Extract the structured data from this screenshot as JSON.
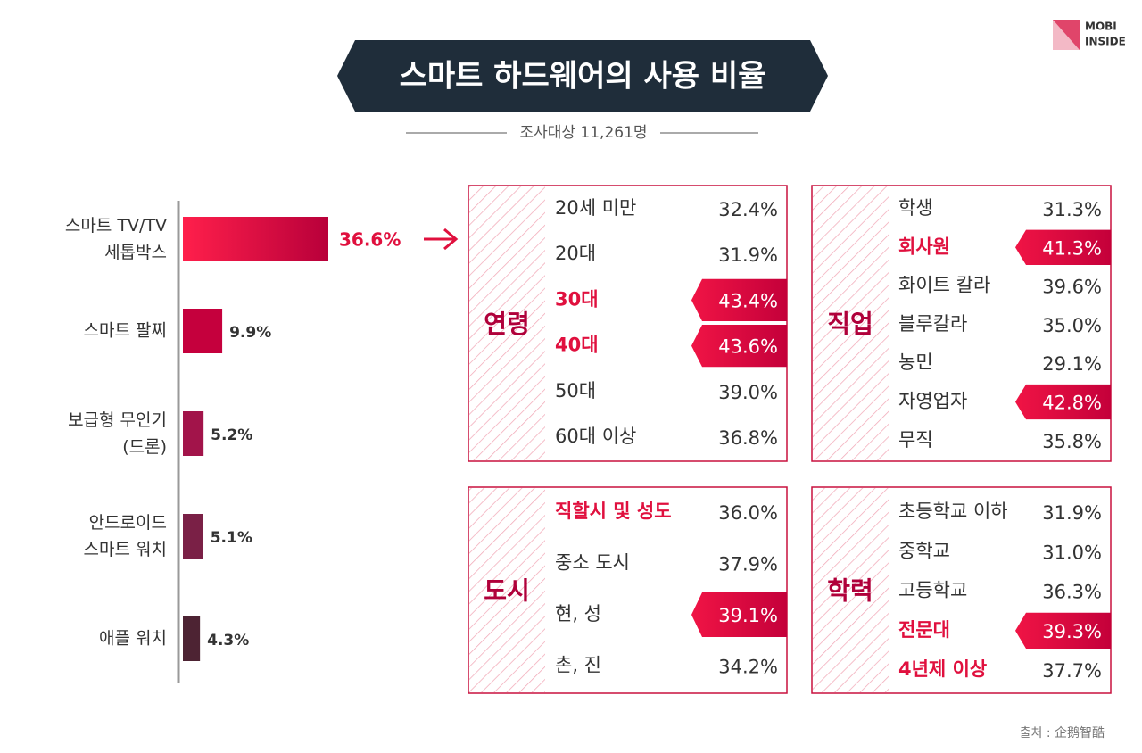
{
  "logo": {
    "line1": "MOBI",
    "line2": "INSIDE"
  },
  "title": "스마트 하드웨어의 사용 비율",
  "subtitle": "조사대상 11,261명",
  "chart_data": {
    "type": "bar",
    "orientation": "horizontal",
    "categories": [
      "스마트 TV/TV\n세톱박스",
      "스마트 팔찌",
      "보급형 무인기\n(드론)",
      "안드로이드\n스마트 워치",
      "애플 워치"
    ],
    "values": [
      36.6,
      9.9,
      5.2,
      5.1,
      4.3
    ],
    "value_labels": [
      "36.6%",
      "9.9%",
      "5.2%",
      "5.1%",
      "4.3%"
    ],
    "colors": [
      "#e8103f",
      "#c5003d",
      "#a2144a",
      "#7a2046",
      "#4d2333"
    ]
  },
  "panels": [
    {
      "title": "연령",
      "rows": [
        {
          "label": "20세 미만",
          "value": "32.4%",
          "label_emphasis": false,
          "value_emphasis": false
        },
        {
          "label": "20대",
          "value": "31.9%",
          "label_emphasis": false,
          "value_emphasis": false
        },
        {
          "label": "30대",
          "value": "43.4%",
          "label_emphasis": true,
          "value_emphasis": true
        },
        {
          "label": "40대",
          "value": "43.6%",
          "label_emphasis": true,
          "value_emphasis": true
        },
        {
          "label": "50대",
          "value": "39.0%",
          "label_emphasis": false,
          "value_emphasis": false
        },
        {
          "label": "60대 이상",
          "value": "36.8%",
          "label_emphasis": false,
          "value_emphasis": false
        }
      ]
    },
    {
      "title": "직업",
      "rows": [
        {
          "label": "학생",
          "value": "31.3%",
          "label_emphasis": false,
          "value_emphasis": false
        },
        {
          "label": "회사원",
          "value": "41.3%",
          "label_emphasis": true,
          "value_emphasis": true
        },
        {
          "label": "화이트 칼라",
          "value": "39.6%",
          "label_emphasis": false,
          "value_emphasis": false
        },
        {
          "label": "블루칼라",
          "value": "35.0%",
          "label_emphasis": false,
          "value_emphasis": false
        },
        {
          "label": "농민",
          "value": "29.1%",
          "label_emphasis": false,
          "value_emphasis": false
        },
        {
          "label": "자영업자",
          "value": "42.8%",
          "label_emphasis": false,
          "value_emphasis": true
        },
        {
          "label": "무직",
          "value": "35.8%",
          "label_emphasis": false,
          "value_emphasis": false
        }
      ]
    },
    {
      "title": "도시",
      "rows": [
        {
          "label": "직할시 및 성도",
          "value": "36.0%",
          "label_emphasis": true,
          "value_emphasis": false
        },
        {
          "label": "중소 도시",
          "value": "37.9%",
          "label_emphasis": false,
          "value_emphasis": false
        },
        {
          "label": "현, 성",
          "value": "39.1%",
          "label_emphasis": false,
          "value_emphasis": true
        },
        {
          "label": "촌, 진",
          "value": "34.2%",
          "label_emphasis": false,
          "value_emphasis": false
        }
      ]
    },
    {
      "title": "학력",
      "rows": [
        {
          "label": "초등학교 이하",
          "value": "31.9%",
          "label_emphasis": false,
          "value_emphasis": false
        },
        {
          "label": "중학교",
          "value": "31.0%",
          "label_emphasis": false,
          "value_emphasis": false
        },
        {
          "label": "고등학교",
          "value": "36.3%",
          "label_emphasis": false,
          "value_emphasis": false
        },
        {
          "label": "전문대",
          "value": "39.3%",
          "label_emphasis": true,
          "value_emphasis": true
        },
        {
          "label": "4년제 이상",
          "value": "37.7%",
          "label_emphasis": true,
          "value_emphasis": false
        }
      ]
    }
  ],
  "source": "출처 : 企鹅智酷"
}
